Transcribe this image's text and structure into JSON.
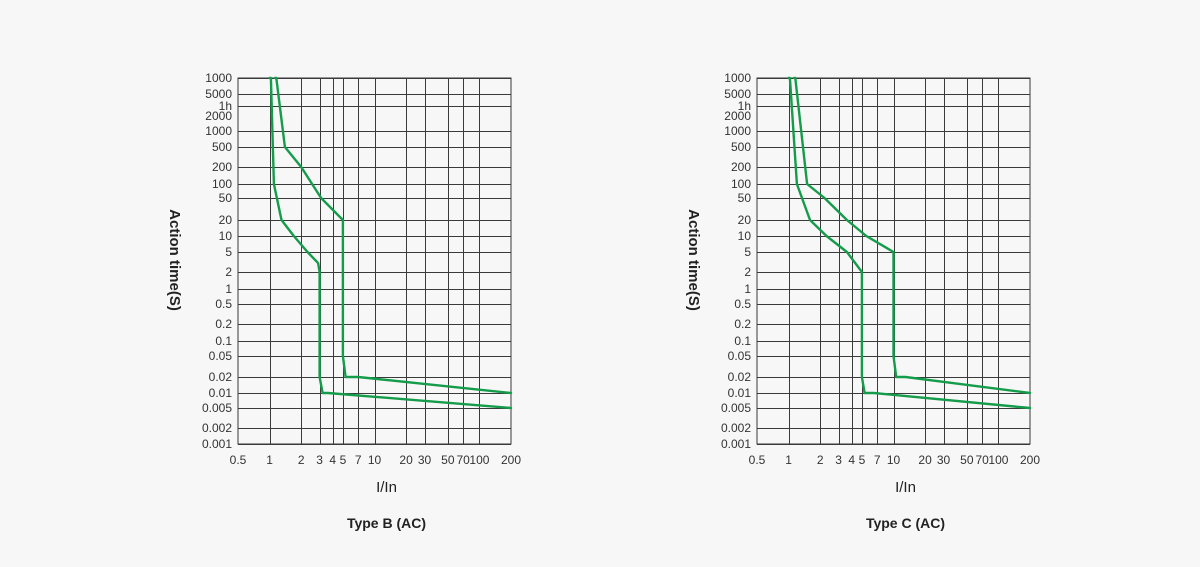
{
  "page": {
    "background": "#f7f7f7"
  },
  "chart_data": [
    {
      "type": "line",
      "title": "Type B (AC)",
      "xlabel": "I/In",
      "ylabel": "Action time(S)",
      "x_scale": "log",
      "y_scale": "ordinal",
      "x_ticks": [
        "0.5",
        "1",
        "2",
        "3",
        "4",
        "5",
        "7",
        "10",
        "20",
        "30",
        "50",
        "70",
        "100",
        "200"
      ],
      "x_tick_values": [
        0.5,
        1,
        2,
        3,
        4,
        5,
        7,
        10,
        20,
        30,
        50,
        70,
        100,
        200
      ],
      "x_gridlines": [
        1,
        2,
        3,
        4,
        5,
        7,
        10,
        20,
        30,
        50,
        70,
        100
      ],
      "xlim": [
        0.5,
        200
      ],
      "y_ticks": [
        "1000",
        "5000",
        "1h",
        "2000",
        "1000",
        "500",
        "200",
        "100",
        "50",
        "20",
        "10",
        "5",
        "2",
        "1",
        "0.5",
        "0.2",
        "0.1",
        "0.05",
        "0.02",
        "0.01",
        "0.005",
        "0.002",
        "0.001"
      ],
      "y_gridlines": [
        "1000",
        "5000",
        "1h",
        "1000",
        "500",
        "200",
        "100",
        "50",
        "20",
        "10",
        "5",
        "2",
        "1",
        "0.5",
        "0.2",
        "0.1",
        "0.05",
        "0.02",
        "0.01",
        "0.005",
        "0.002",
        "0.001"
      ],
      "line_color": "#149c4a",
      "series": [
        {
          "points": [
            [
              1.0,
              "1000"
            ],
            [
              1.03,
              "1000"
            ],
            [
              1.1,
              "100"
            ],
            [
              1.3,
              "20"
            ],
            [
              1.7,
              "10"
            ],
            [
              2.3,
              "5"
            ],
            [
              2.9,
              "3"
            ],
            [
              3.0,
              "2"
            ],
            [
              3.0,
              "0.02"
            ],
            [
              3.2,
              "0.01"
            ],
            [
              3.6,
              "0.01"
            ],
            [
              200,
              "0.005"
            ]
          ]
        },
        {
          "points": [
            [
              1.13,
              "1000"
            ],
            [
              1.16,
              "1000"
            ],
            [
              1.4,
              "500"
            ],
            [
              2.0,
              "200"
            ],
            [
              3.1,
              "50"
            ],
            [
              5.0,
              "20"
            ],
            [
              5.0,
              "0.05"
            ],
            [
              5.3,
              "0.02"
            ],
            [
              7.0,
              "0.02"
            ],
            [
              200,
              "0.01"
            ]
          ]
        }
      ]
    },
    {
      "type": "line",
      "title": "Type C (AC)",
      "xlabel": "I/In",
      "ylabel": "Action time(S)",
      "x_scale": "log",
      "y_scale": "ordinal",
      "x_ticks": [
        "0.5",
        "1",
        "2",
        "3",
        "4",
        "5",
        "7",
        "10",
        "20",
        "30",
        "50",
        "70",
        "100",
        "200"
      ],
      "x_tick_values": [
        0.5,
        1,
        2,
        3,
        4,
        5,
        7,
        10,
        20,
        30,
        50,
        70,
        100,
        200
      ],
      "x_gridlines": [
        1,
        2,
        3,
        4,
        5,
        7,
        10,
        20,
        30,
        50,
        70,
        100
      ],
      "xlim": [
        0.5,
        200
      ],
      "y_ticks": [
        "1000",
        "5000",
        "1h",
        "2000",
        "1000",
        "500",
        "200",
        "100",
        "50",
        "20",
        "10",
        "5",
        "2",
        "1",
        "0.5",
        "0.2",
        "0.1",
        "0.05",
        "0.02",
        "0.01",
        "0.005",
        "0.002",
        "0.001"
      ],
      "y_gridlines": [
        "1000",
        "5000",
        "1h",
        "1000",
        "500",
        "200",
        "100",
        "50",
        "20",
        "10",
        "5",
        "2",
        "1",
        "0.5",
        "0.2",
        "0.1",
        "0.05",
        "0.02",
        "0.01",
        "0.005",
        "0.002",
        "0.001"
      ],
      "line_color": "#149c4a",
      "series": [
        {
          "points": [
            [
              1.0,
              "1000"
            ],
            [
              1.03,
              "1000"
            ],
            [
              1.2,
              "100"
            ],
            [
              1.6,
              "20"
            ],
            [
              2.3,
              "10"
            ],
            [
              3.6,
              "5"
            ],
            [
              5.0,
              "2"
            ],
            [
              5.0,
              "0.02"
            ],
            [
              5.3,
              "0.01"
            ],
            [
              6.5,
              "0.01"
            ],
            [
              200,
              "0.005"
            ]
          ]
        },
        {
          "points": [
            [
              1.13,
              "1000"
            ],
            [
              1.16,
              "1000"
            ],
            [
              1.5,
              "100"
            ],
            [
              2.2,
              "50"
            ],
            [
              3.6,
              "20"
            ],
            [
              5.5,
              "10"
            ],
            [
              10.0,
              "5"
            ],
            [
              10.0,
              "0.05"
            ],
            [
              10.6,
              "0.02"
            ],
            [
              13.0,
              "0.02"
            ],
            [
              200,
              "0.01"
            ]
          ]
        }
      ]
    }
  ]
}
